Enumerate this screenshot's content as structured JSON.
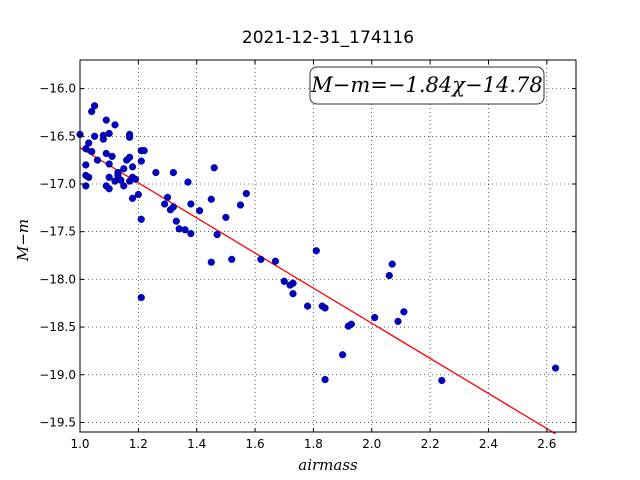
{
  "chart_data": {
    "type": "scatter",
    "title": "2021-12-31_174116",
    "xlabel": "airmass",
    "ylabel": "M−m",
    "xlim": [
      1.0,
      2.7
    ],
    "ylim": [
      -19.6,
      -15.7
    ],
    "x_ticks": [
      1.0,
      1.2,
      1.4,
      1.6,
      1.8,
      2.0,
      2.2,
      2.4,
      2.6
    ],
    "x_tick_labels": [
      "1.0",
      "1.2",
      "1.4",
      "1.6",
      "1.8",
      "2.0",
      "2.2",
      "2.4",
      "2.6"
    ],
    "y_ticks": [
      -16.0,
      -16.5,
      -17.0,
      -17.5,
      -18.0,
      -18.5,
      -19.0,
      -19.5
    ],
    "y_tick_labels": [
      "−16.0",
      "−16.5",
      "−17.0",
      "−17.5",
      "−18.0",
      "−18.5",
      "−19.0",
      "−19.5"
    ],
    "grid": true,
    "annotation": "M−m=−1.84χ−14.78",
    "fit": {
      "slope": -1.84,
      "intercept": -14.78,
      "x_range": [
        1.0,
        2.63
      ],
      "color": "#ff0000"
    },
    "marker_color": "#0000cc",
    "points": [
      [
        1.0,
        -16.48
      ],
      [
        1.02,
        -16.63
      ],
      [
        1.02,
        -16.8
      ],
      [
        1.02,
        -16.91
      ],
      [
        1.02,
        -17.02
      ],
      [
        1.03,
        -16.57
      ],
      [
        1.03,
        -16.93
      ],
      [
        1.04,
        -16.24
      ],
      [
        1.04,
        -16.66
      ],
      [
        1.05,
        -16.18
      ],
      [
        1.05,
        -16.5
      ],
      [
        1.06,
        -16.75
      ],
      [
        1.08,
        -16.53
      ],
      [
        1.08,
        -16.49
      ],
      [
        1.09,
        -16.33
      ],
      [
        1.09,
        -16.68
      ],
      [
        1.09,
        -17.02
      ],
      [
        1.1,
        -16.47
      ],
      [
        1.1,
        -16.79
      ],
      [
        1.1,
        -16.93
      ],
      [
        1.1,
        -17.05
      ],
      [
        1.11,
        -16.71
      ],
      [
        1.12,
        -16.38
      ],
      [
        1.12,
        -16.97
      ],
      [
        1.13,
        -16.88
      ],
      [
        1.13,
        -16.91
      ],
      [
        1.14,
        -16.96
      ],
      [
        1.15,
        -16.84
      ],
      [
        1.15,
        -17.02
      ],
      [
        1.16,
        -16.75
      ],
      [
        1.17,
        -16.48
      ],
      [
        1.17,
        -16.51
      ],
      [
        1.17,
        -16.72
      ],
      [
        1.17,
        -16.97
      ],
      [
        1.18,
        -16.82
      ],
      [
        1.18,
        -16.93
      ],
      [
        1.18,
        -17.15
      ],
      [
        1.19,
        -16.95
      ],
      [
        1.2,
        -17.11
      ],
      [
        1.21,
        -16.65
      ],
      [
        1.21,
        -16.76
      ],
      [
        1.21,
        -17.37
      ],
      [
        1.21,
        -18.19
      ],
      [
        1.22,
        -16.65
      ],
      [
        1.26,
        -16.88
      ],
      [
        1.29,
        -17.21
      ],
      [
        1.3,
        -17.14
      ],
      [
        1.31,
        -17.27
      ],
      [
        1.32,
        -16.88
      ],
      [
        1.32,
        -17.24
      ],
      [
        1.33,
        -17.39
      ],
      [
        1.34,
        -17.47
      ],
      [
        1.36,
        -17.48
      ],
      [
        1.37,
        -16.98
      ],
      [
        1.38,
        -17.21
      ],
      [
        1.38,
        -17.52
      ],
      [
        1.41,
        -17.28
      ],
      [
        1.45,
        -17.16
      ],
      [
        1.45,
        -17.82
      ],
      [
        1.46,
        -16.83
      ],
      [
        1.47,
        -17.53
      ],
      [
        1.5,
        -17.35
      ],
      [
        1.52,
        -17.79
      ],
      [
        1.55,
        -17.22
      ],
      [
        1.57,
        -17.1
      ],
      [
        1.62,
        -17.79
      ],
      [
        1.67,
        -17.81
      ],
      [
        1.7,
        -18.02
      ],
      [
        1.72,
        -18.06
      ],
      [
        1.73,
        -18.04
      ],
      [
        1.73,
        -18.15
      ],
      [
        1.78,
        -18.28
      ],
      [
        1.81,
        -17.7
      ],
      [
        1.83,
        -18.28
      ],
      [
        1.84,
        -18.3
      ],
      [
        1.84,
        -19.05
      ],
      [
        1.9,
        -18.79
      ],
      [
        1.92,
        -18.49
      ],
      [
        1.93,
        -18.47
      ],
      [
        2.01,
        -18.4
      ],
      [
        2.06,
        -17.96
      ],
      [
        2.07,
        -17.84
      ],
      [
        2.09,
        -18.44
      ],
      [
        2.11,
        -18.34
      ],
      [
        2.24,
        -19.06
      ],
      [
        2.63,
        -18.93
      ]
    ]
  }
}
